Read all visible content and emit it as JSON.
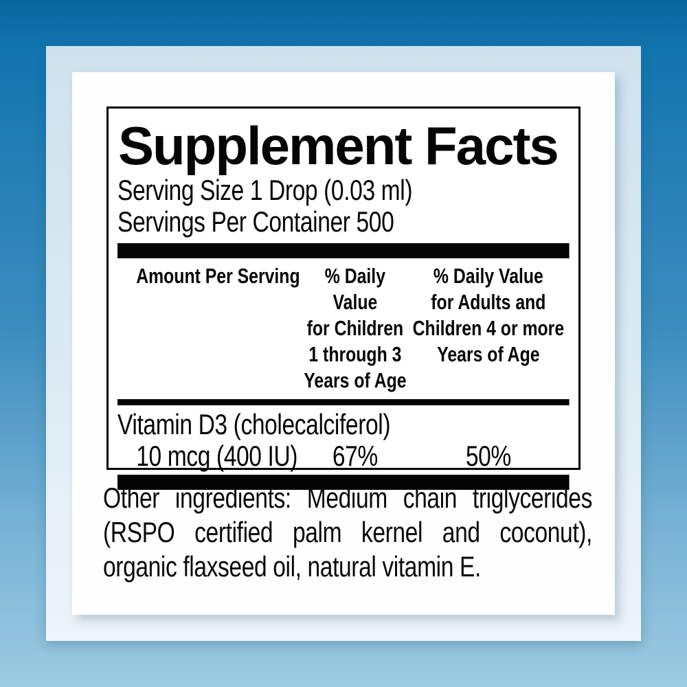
{
  "palette": {
    "background_top": "#0c6ca6",
    "background_bottom": "#9ccae1",
    "frame_top": "#cde1ec",
    "frame_bottom": "#eef4f9",
    "panel": "#fefefe",
    "rule": "#050505",
    "text": "#060606"
  },
  "supplement_facts": {
    "title": "Supplement Facts",
    "serving_size": "Serving Size 1 Drop (0.03 ml)",
    "servings_per_container": "Servings Per Container 500",
    "header": {
      "amount_col": "Amount Per Serving",
      "children_col": "% Daily Value\nfor Children\n1 through 3\nYears of Age",
      "adults_col": "% Daily Value\nfor Adults and\nChildren 4 or more\nYears of Age"
    },
    "rows": [
      {
        "name": "Vitamin D3 (cholecalciferol)",
        "amount": "10 mcg (400 IU)",
        "children_dv": "67%",
        "adults_dv": "50%"
      }
    ],
    "other_ingredients": {
      "line1": "Other ingredients: Medium chain triglycerides",
      "line2": "(RSPO certified palm kernel and coconut),",
      "line3": "organic flaxseed oil, natural vitamin E."
    }
  }
}
